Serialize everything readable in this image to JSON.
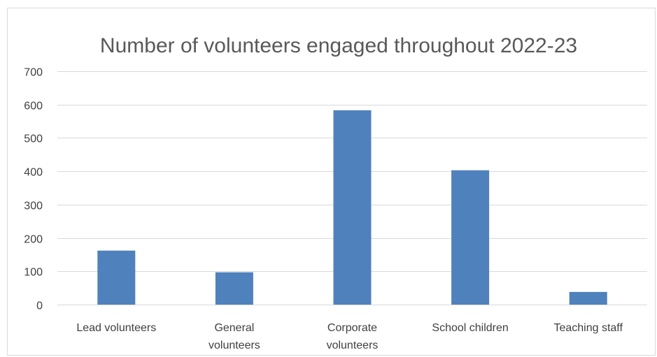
{
  "chart_data": {
    "type": "bar",
    "title": "Number of volunteers engaged throughout 2022-23",
    "xlabel": "",
    "ylabel": "",
    "categories": [
      [
        "Lead volunteers"
      ],
      [
        "General",
        "volunteers"
      ],
      [
        "Corporate",
        "volunteers"
      ],
      [
        "School children"
      ],
      [
        "Teaching staff"
      ]
    ],
    "values": [
      162,
      97,
      583,
      403,
      38
    ],
    "ylim": [
      0,
      700
    ],
    "yticks": [
      0,
      100,
      200,
      300,
      400,
      500,
      600,
      700
    ],
    "grid": true,
    "legend": "none",
    "colors": {
      "bar": "#4f81bd",
      "grid": "#d9d9d9",
      "axis": "#d9d9d9"
    }
  }
}
